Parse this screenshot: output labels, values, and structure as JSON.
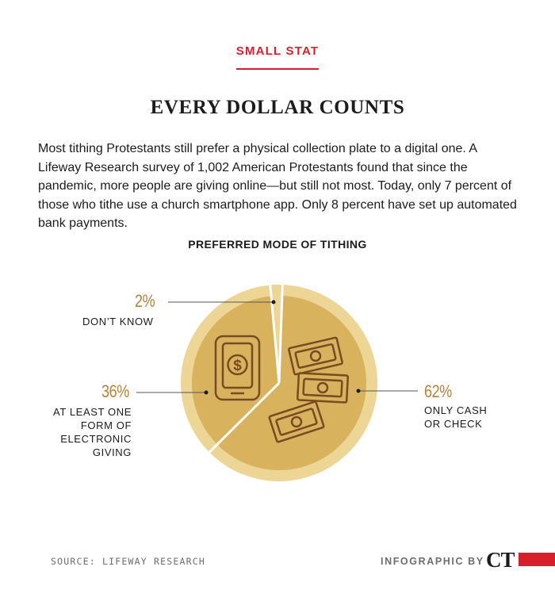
{
  "header": {
    "kicker": "SMALL STAT",
    "title": "EVERY DOLLAR COUNTS",
    "dek": "Most tithing Protestants still prefer a physical collection plate to a digital one. A Lifeway Research survey of 1,002 American Protestants found that since the pandemic, more people are giving online—but still not most. Today, only 7 percent of those who tithe use a church smartphone app. Only 8 percent have set up automated bank payments."
  },
  "chart_data": {
    "type": "pie",
    "title": "PREFERRED MODE OF TITHING",
    "slices": [
      {
        "label": "ONLY CASH OR CHECK",
        "value": 62,
        "display": "62%",
        "color": "#d9b25e"
      },
      {
        "label": "AT LEAST ONE FORM OF ELECTRONIC GIVING",
        "value": 36,
        "display": "36%",
        "color": "#d9b25e"
      },
      {
        "label": "DON’T KNOW",
        "value": 2,
        "display": "2%",
        "color": "#edd595"
      }
    ],
    "colors": {
      "outer_ring": "#edd595",
      "fill": "#d9b25e",
      "divider": "#ffffff",
      "icon": "#7a4a22",
      "percent": "#b4843f"
    }
  },
  "icons": [
    "smartphone-dollar-icon",
    "cash-bills-icon"
  ],
  "footer": {
    "source": "SOURCE: LIFEWAY RESEARCH",
    "credit": "INFOGRAPHIC BY",
    "logo": "CT"
  }
}
